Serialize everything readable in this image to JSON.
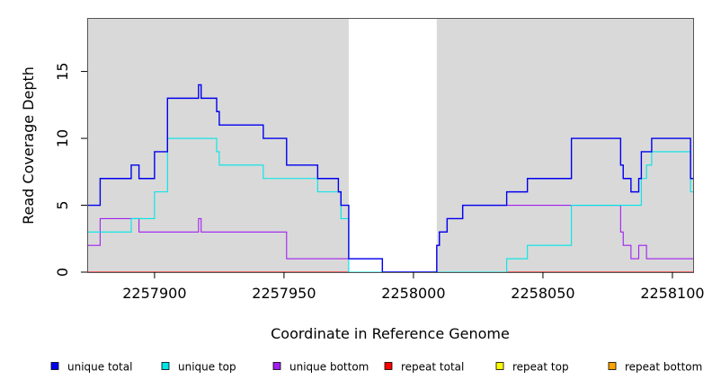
{
  "chart_data": {
    "type": "line",
    "title": "",
    "xlabel": "Coordinate in Reference Genome",
    "ylabel": "Read Coverage Depth",
    "xlim": [
      2257874,
      2258108
    ],
    "ylim": [
      0,
      19
    ],
    "x_ticks": [
      2257900,
      2257950,
      2258000,
      2258050,
      2258100
    ],
    "x_tick_labels": [
      "2257900",
      "2257950",
      "2258000",
      "2258050",
      "2258100"
    ],
    "y_ticks": [
      0,
      5,
      10,
      15
    ],
    "y_tick_labels": [
      "0",
      "5",
      "10",
      "15"
    ],
    "grid": false,
    "shaded_regions": [
      [
        2257874,
        2257975
      ],
      [
        2258009,
        2258108
      ]
    ],
    "shaded_color": "#d9d9d9",
    "step": true,
    "legend_position": "bottom",
    "series": [
      {
        "name": "unique total",
        "color": "#0000ee",
        "points": [
          [
            2257874,
            5
          ],
          [
            2257879,
            5
          ],
          [
            2257879,
            7
          ],
          [
            2257891,
            7
          ],
          [
            2257891,
            8
          ],
          [
            2257894,
            8
          ],
          [
            2257894,
            7
          ],
          [
            2257900,
            7
          ],
          [
            2257900,
            9
          ],
          [
            2257905,
            9
          ],
          [
            2257905,
            13
          ],
          [
            2257917,
            13
          ],
          [
            2257917,
            14
          ],
          [
            2257918,
            14
          ],
          [
            2257918,
            13
          ],
          [
            2257924,
            13
          ],
          [
            2257924,
            12
          ],
          [
            2257925,
            12
          ],
          [
            2257925,
            11
          ],
          [
            2257942,
            11
          ],
          [
            2257942,
            10
          ],
          [
            2257951,
            10
          ],
          [
            2257951,
            8
          ],
          [
            2257963,
            8
          ],
          [
            2257963,
            7
          ],
          [
            2257971,
            7
          ],
          [
            2257971,
            6
          ],
          [
            2257972,
            6
          ],
          [
            2257972,
            5
          ],
          [
            2257975,
            5
          ],
          [
            2257975,
            1
          ],
          [
            2257988,
            1
          ],
          [
            2257988,
            0
          ],
          [
            2258009,
            0
          ],
          [
            2258009,
            2
          ],
          [
            2258010,
            2
          ],
          [
            2258010,
            3
          ],
          [
            2258013,
            3
          ],
          [
            2258013,
            4
          ],
          [
            2258019,
            4
          ],
          [
            2258019,
            5
          ],
          [
            2258036,
            5
          ],
          [
            2258036,
            6
          ],
          [
            2258044,
            6
          ],
          [
            2258044,
            7
          ],
          [
            2258061,
            7
          ],
          [
            2258061,
            10
          ],
          [
            2258080,
            10
          ],
          [
            2258080,
            8
          ],
          [
            2258081,
            8
          ],
          [
            2258081,
            7
          ],
          [
            2258084,
            7
          ],
          [
            2258084,
            6
          ],
          [
            2258087,
            6
          ],
          [
            2258087,
            7
          ],
          [
            2258088,
            7
          ],
          [
            2258088,
            9
          ],
          [
            2258092,
            9
          ],
          [
            2258092,
            10
          ],
          [
            2258107,
            10
          ],
          [
            2258107,
            7
          ],
          [
            2258108,
            7
          ]
        ]
      },
      {
        "name": "unique top",
        "color": "#00e5e5",
        "points": [
          [
            2257874,
            3
          ],
          [
            2257891,
            3
          ],
          [
            2257891,
            4
          ],
          [
            2257900,
            4
          ],
          [
            2257900,
            6
          ],
          [
            2257905,
            6
          ],
          [
            2257905,
            10
          ],
          [
            2257924,
            10
          ],
          [
            2257924,
            9
          ],
          [
            2257925,
            9
          ],
          [
            2257925,
            8
          ],
          [
            2257942,
            8
          ],
          [
            2257942,
            7
          ],
          [
            2257963,
            7
          ],
          [
            2257963,
            6
          ],
          [
            2257972,
            6
          ],
          [
            2257972,
            4
          ],
          [
            2257975,
            4
          ],
          [
            2257975,
            0
          ],
          [
            2258036,
            0
          ],
          [
            2258036,
            1
          ],
          [
            2258044,
            1
          ],
          [
            2258044,
            2
          ],
          [
            2258061,
            2
          ],
          [
            2258061,
            5
          ],
          [
            2258088,
            5
          ],
          [
            2258088,
            7
          ],
          [
            2258090,
            7
          ],
          [
            2258090,
            8
          ],
          [
            2258092,
            8
          ],
          [
            2258092,
            9
          ],
          [
            2258107,
            9
          ],
          [
            2258107,
            6
          ],
          [
            2258108,
            6
          ]
        ]
      },
      {
        "name": "unique bottom",
        "color": "#a020f0",
        "points": [
          [
            2257874,
            2
          ],
          [
            2257879,
            2
          ],
          [
            2257879,
            4
          ],
          [
            2257894,
            4
          ],
          [
            2257894,
            3
          ],
          [
            2257917,
            3
          ],
          [
            2257917,
            4
          ],
          [
            2257918,
            4
          ],
          [
            2257918,
            3
          ],
          [
            2257951,
            3
          ],
          [
            2257951,
            1
          ],
          [
            2257975,
            1
          ],
          [
            2257975,
            1
          ],
          [
            2257988,
            1
          ],
          [
            2257988,
            0
          ],
          [
            2258009,
            0
          ],
          [
            2258009,
            2
          ],
          [
            2258010,
            2
          ],
          [
            2258010,
            3
          ],
          [
            2258013,
            3
          ],
          [
            2258013,
            4
          ],
          [
            2258019,
            4
          ],
          [
            2258019,
            5
          ],
          [
            2258080,
            5
          ],
          [
            2258080,
            3
          ],
          [
            2258081,
            3
          ],
          [
            2258081,
            2
          ],
          [
            2258084,
            2
          ],
          [
            2258084,
            1
          ],
          [
            2258087,
            1
          ],
          [
            2258087,
            2
          ],
          [
            2258090,
            2
          ],
          [
            2258090,
            1
          ],
          [
            2258108,
            1
          ]
        ]
      },
      {
        "name": "repeat total",
        "color": "#ff0000",
        "points": [
          [
            2257874,
            0
          ],
          [
            2258108,
            0
          ]
        ]
      },
      {
        "name": "repeat top",
        "color": "#ffff00",
        "points": [
          [
            2257874,
            0
          ],
          [
            2258108,
            0
          ]
        ]
      },
      {
        "name": "repeat bottom",
        "color": "#ffa500",
        "points": [
          [
            2257874,
            0
          ],
          [
            2258108,
            0
          ]
        ]
      }
    ]
  }
}
